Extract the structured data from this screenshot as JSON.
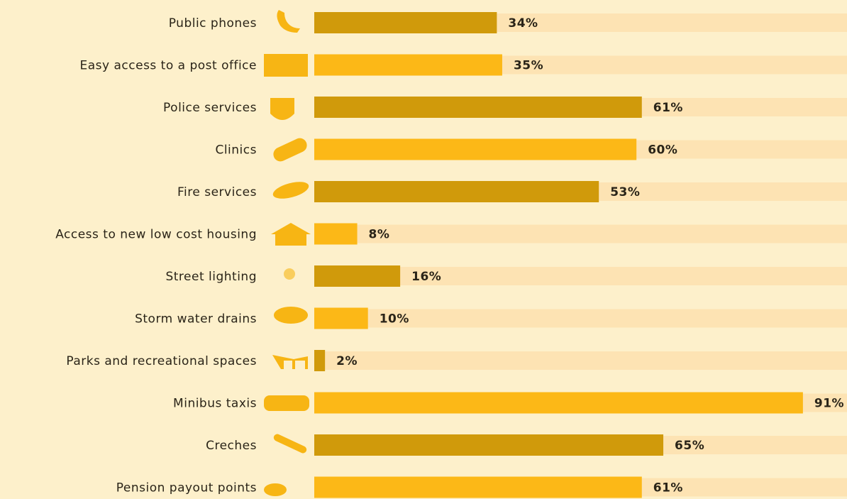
{
  "chart_data": {
    "type": "bar",
    "orientation": "horizontal",
    "categories": [
      "Public phones",
      "Easy access to a post office",
      "Police services",
      "Clinics",
      "Fire services",
      "Access to new low cost housing",
      "Street lighting",
      "Storm water drains",
      "Parks and recreational spaces",
      "Minibus taxis",
      "Creches",
      "Pension payout points"
    ],
    "values": [
      34,
      35,
      61,
      60,
      53,
      8,
      16,
      10,
      2,
      91,
      65,
      61
    ],
    "value_labels": [
      "34%",
      "35%",
      "61%",
      "60%",
      "53%",
      "8%",
      "16%",
      "10%",
      "2%",
      "91%",
      "65%",
      "61%"
    ],
    "colors": [
      "#d09a0b",
      "#fcb817",
      "#d09a0b",
      "#fcb817",
      "#d09a0b",
      "#fcb817",
      "#d09a0b",
      "#fcb817",
      "#d09a0b",
      "#fcb817",
      "#d09a0b",
      "#fcb817"
    ],
    "xlim": [
      0,
      100
    ]
  }
}
